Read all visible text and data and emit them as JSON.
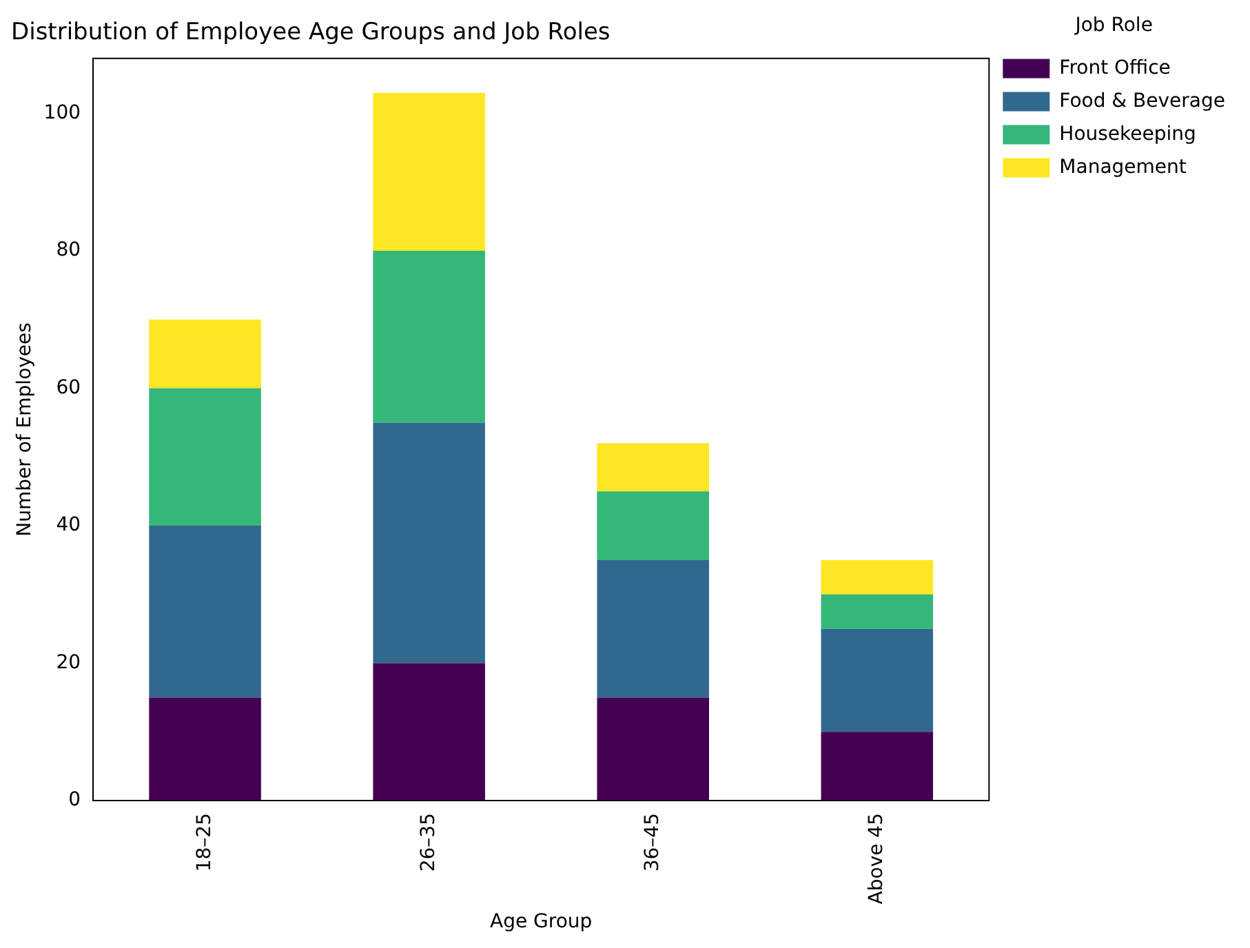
{
  "chart_data": {
    "type": "bar",
    "title": "Distribution of Employee Age Groups and Job Roles",
    "xlabel": "Age Group",
    "ylabel": "Number of Employees",
    "legend_title": "Job Role",
    "categories": [
      "18–25",
      "26–35",
      "36–45",
      "Above 45"
    ],
    "series": [
      {
        "name": "Front Office",
        "color": "#440154",
        "values": [
          15,
          20,
          15,
          10
        ]
      },
      {
        "name": "Food & Beverage",
        "color": "#31688e",
        "values": [
          25,
          35,
          20,
          15
        ]
      },
      {
        "name": "Housekeeping",
        "color": "#35b779",
        "values": [
          20,
          25,
          10,
          5
        ]
      },
      {
        "name": "Management",
        "color": "#fde725",
        "values": [
          10,
          23,
          7,
          5
        ]
      }
    ],
    "stacked": true,
    "ylim": [
      0,
      108
    ],
    "yticks": [
      0,
      20,
      40,
      60,
      80,
      100
    ],
    "grid": false,
    "legend": "top right"
  }
}
